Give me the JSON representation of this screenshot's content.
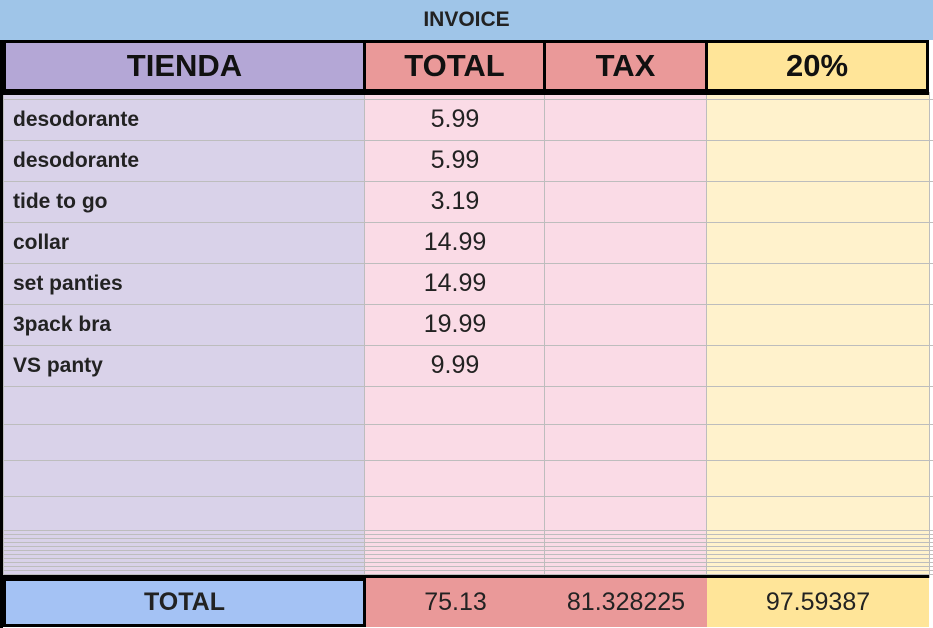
{
  "title": "INVOICE",
  "headers": {
    "item": "TIENDA",
    "total": "TOTAL",
    "tax": "TAX",
    "pct": "20%"
  },
  "rows": [
    {
      "item": "desodorante",
      "total": "5.99"
    },
    {
      "item": "desodorante",
      "total": "5.99"
    },
    {
      "item": "tide to go",
      "total": "3.19"
    },
    {
      "item": "collar",
      "total": "14.99"
    },
    {
      "item": "set panties",
      "total": "14.99"
    },
    {
      "item": "3pack  bra",
      "total": "19.99"
    },
    {
      "item": "VS panty",
      "total": "9.99"
    }
  ],
  "totals": {
    "label": "TOTAL",
    "total": "75.13",
    "tax": "81.328225",
    "pct": "97.59387"
  },
  "colors": {
    "title_bg": "#9fc5e8",
    "item_header": "#b4a7d6",
    "item_body": "#d9d2e9",
    "total_header": "#ea9999",
    "total_body": "#fadbe6",
    "pct_header": "#ffe599",
    "pct_body": "#fff2cc",
    "totals_label": "#a4c2f4"
  }
}
